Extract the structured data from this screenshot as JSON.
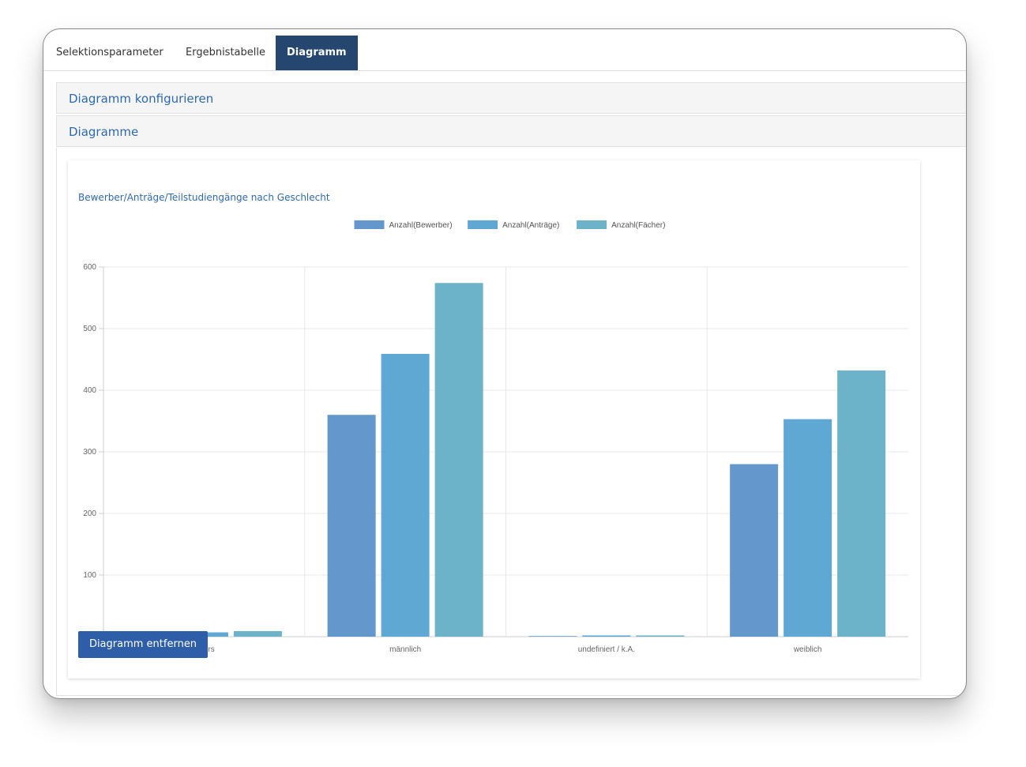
{
  "tabs": [
    {
      "label": "Selektionsparameter"
    },
    {
      "label": "Ergebnistabelle"
    },
    {
      "label": "Diagramm"
    }
  ],
  "panels": {
    "configure_title": "Diagramm konfigurieren",
    "charts_title": "Diagramme"
  },
  "remove_button_label": "Diagramm entfernen",
  "colors": {
    "accent": "#24466f",
    "link": "#2e6ab1",
    "button": "#2e5ea8"
  },
  "chart_data": {
    "type": "bar",
    "title": "Bewerber/Anträge/Teilstudiengänge nach Geschlecht",
    "categories": [
      "divers",
      "männlich",
      "undefiniert / k.A.",
      "weiblich"
    ],
    "series": [
      {
        "name": "Anzahl(Bewerber)",
        "color": "#6497cb",
        "values": [
          4,
          360,
          1,
          280
        ]
      },
      {
        "name": "Anzahl(Anträge)",
        "color": "#5fa8d3",
        "values": [
          7,
          459,
          2,
          353
        ]
      },
      {
        "name": "Anzahl(Fächer)",
        "color": "#6cb3c9",
        "values": [
          9,
          574,
          2,
          432
        ]
      }
    ],
    "ylim": [
      0,
      600
    ],
    "yticks": [
      0,
      100,
      200,
      300,
      400,
      500,
      600
    ],
    "grid": true,
    "legend": "top"
  }
}
